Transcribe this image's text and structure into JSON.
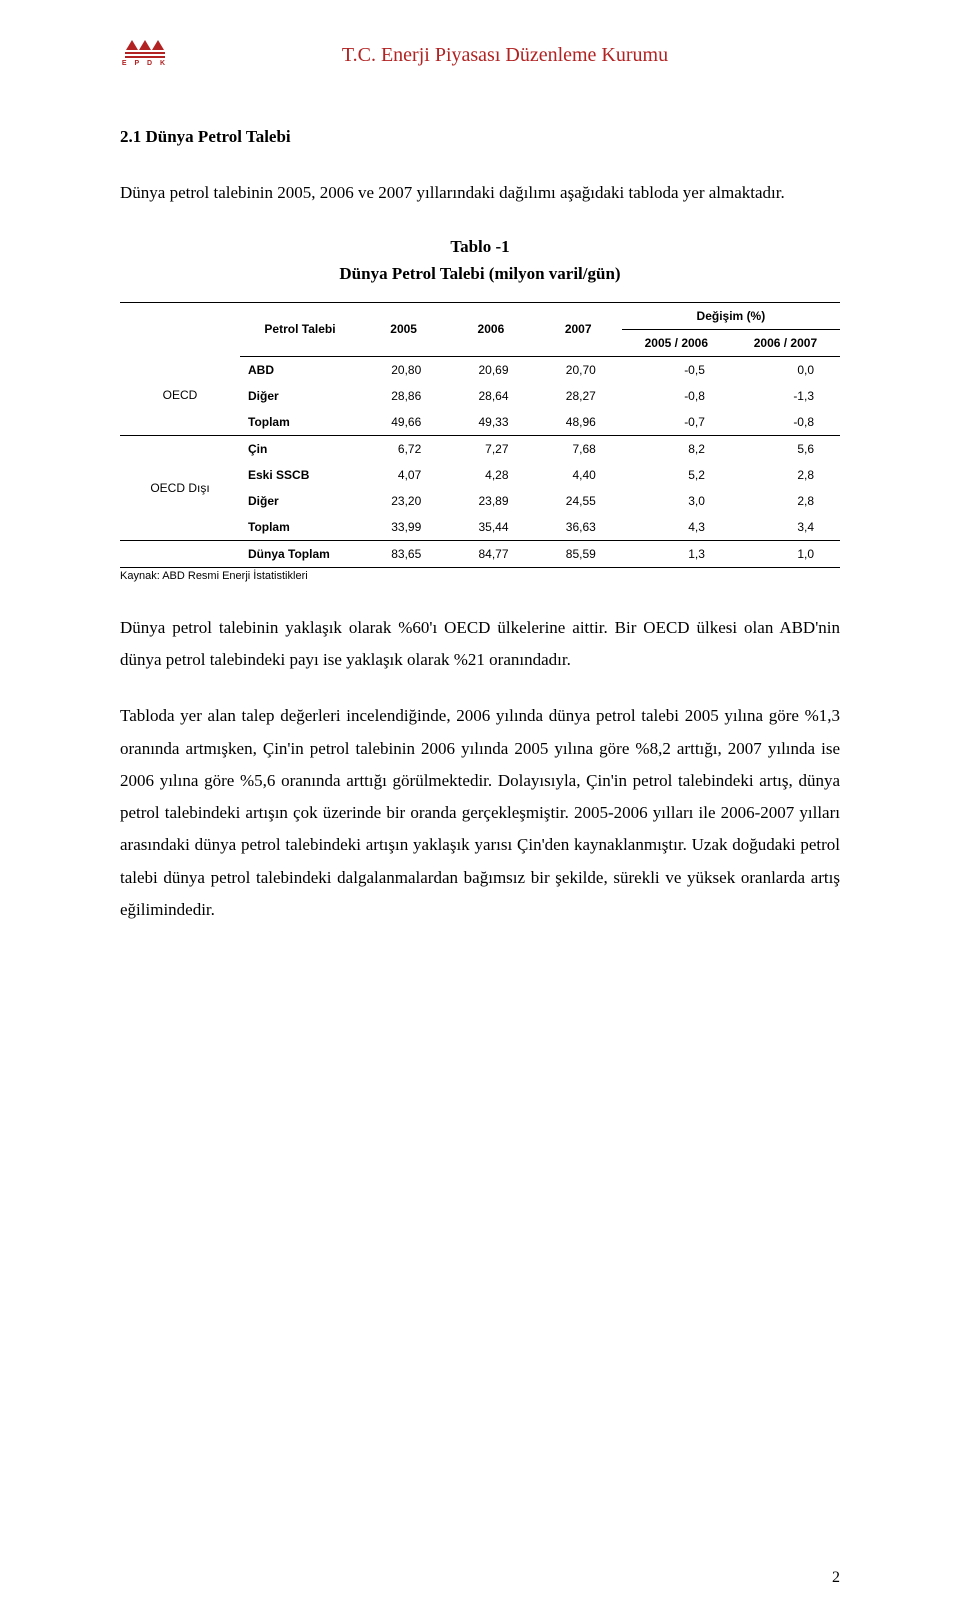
{
  "header": {
    "org_title": "T.C. Enerji Piyasası Düzenleme Kurumu",
    "logo_letters": "E P D K",
    "title_color": "#b22222"
  },
  "section": {
    "heading": "2.1 Dünya Petrol Talebi",
    "intro": "Dünya petrol talebinin 2005, 2006 ve 2007 yıllarındaki dağılımı aşağıdaki tabloda yer almaktadır."
  },
  "table": {
    "caption_line1": "Tablo -1",
    "caption_line2": "Dünya Petrol Talebi (milyon varil/gün)",
    "col_header_label": "Petrol Talebi",
    "year_cols": [
      "2005",
      "2006",
      "2007"
    ],
    "change_header": "Değişim (%)",
    "change_cols": [
      "2005 / 2006",
      "2006 / 2007"
    ],
    "groups": [
      {
        "label": "OECD",
        "rows": [
          {
            "label": "ABD",
            "vals": [
              "20,80",
              "20,69",
              "20,70"
            ],
            "chg": [
              "-0,5",
              "0,0"
            ]
          },
          {
            "label": "Diğer",
            "vals": [
              "28,86",
              "28,64",
              "28,27"
            ],
            "chg": [
              "-0,8",
              "-1,3"
            ]
          },
          {
            "label": "Toplam",
            "vals": [
              "49,66",
              "49,33",
              "48,96"
            ],
            "chg": [
              "-0,7",
              "-0,8"
            ]
          }
        ]
      },
      {
        "label": "OECD Dışı",
        "rows": [
          {
            "label": "Çin",
            "vals": [
              "6,72",
              "7,27",
              "7,68"
            ],
            "chg": [
              "8,2",
              "5,6"
            ]
          },
          {
            "label": "Eski SSCB",
            "vals": [
              "4,07",
              "4,28",
              "4,40"
            ],
            "chg": [
              "5,2",
              "2,8"
            ]
          },
          {
            "label": "Diğer",
            "vals": [
              "23,20",
              "23,89",
              "24,55"
            ],
            "chg": [
              "3,0",
              "2,8"
            ]
          },
          {
            "label": "Toplam",
            "vals": [
              "33,99",
              "35,44",
              "36,63"
            ],
            "chg": [
              "4,3",
              "3,4"
            ]
          }
        ]
      }
    ],
    "grand_total": {
      "label": "Dünya Toplam",
      "vals": [
        "83,65",
        "84,77",
        "85,59"
      ],
      "chg": [
        "1,3",
        "1,0"
      ]
    },
    "source": "Kaynak: ABD Resmi Enerji İstatistikleri"
  },
  "body": {
    "p1": "Dünya petrol talebinin yaklaşık olarak %60'ı OECD ülkelerine aittir. Bir OECD ülkesi olan ABD'nin dünya petrol talebindeki payı ise yaklaşık olarak %21 oranındadır.",
    "p2": "Tabloda yer alan talep değerleri incelendiğinde, 2006 yılında dünya petrol talebi 2005 yılına göre %1,3 oranında artmışken, Çin'in petrol talebinin 2006 yılında 2005 yılına göre %8,2 arttığı, 2007 yılında ise 2006 yılına göre %5,6 oranında arttığı görülmektedir. Dolayısıyla, Çin'in petrol talebindeki artış, dünya petrol talebindeki artışın çok üzerinde bir oranda gerçekleşmiştir. 2005-2006 yılları ile 2006-2007 yılları arasındaki dünya petrol talebindeki artışın yaklaşık yarısı Çin'den kaynaklanmıştır. Uzak doğudaki petrol talebi dünya petrol talebindeki dalgalanmalardan bağımsız bir şekilde, sürekli ve yüksek oranlarda artış eğilimindedir."
  },
  "page_number": "2",
  "colors": {
    "text": "#000000",
    "accent": "#b22222",
    "background": "#ffffff",
    "table_border": "#000000"
  }
}
